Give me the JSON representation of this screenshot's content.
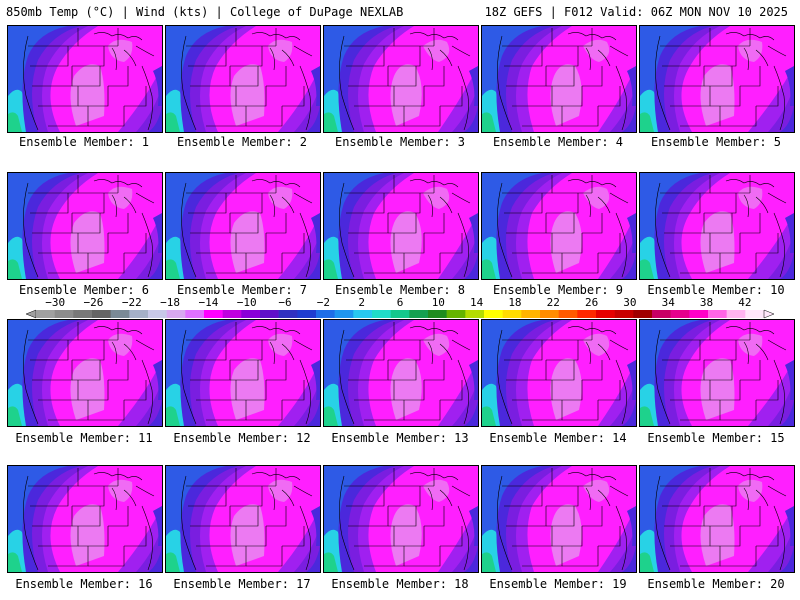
{
  "header": {
    "left": "850mb Temp (°C) | Wind (kts) | College of DuPage NEXLAB",
    "right": "18Z GEFS | F012 Valid: 06Z MON NOV 10 2025"
  },
  "member_label_prefix": "Ensemble Member: ",
  "members": [
    1,
    2,
    3,
    4,
    5,
    6,
    7,
    8,
    9,
    10,
    11,
    12,
    13,
    14,
    15,
    16,
    17,
    18,
    19,
    20
  ],
  "colorbar": {
    "tick_labels": [
      "-30",
      "-26",
      "-22",
      "-18",
      "-14",
      "-10",
      "-6",
      "-2",
      "2",
      "6",
      "10",
      "14",
      "18",
      "22",
      "26",
      "30",
      "34",
      "38",
      "42"
    ],
    "colors": [
      "#a0a0a0",
      "#8c8c8c",
      "#787878",
      "#646464",
      "#7a8a96",
      "#a5b0c8",
      "#c8c8e8",
      "#d8a8f0",
      "#e070ff",
      "#ff00ff",
      "#c000e0",
      "#8a00d8",
      "#6010c8",
      "#3030c0",
      "#1e3cd0",
      "#1e6ee8",
      "#1e96f0",
      "#28c8f0",
      "#20dcc8",
      "#14c88c",
      "#14a050",
      "#1e8c1e",
      "#64b400",
      "#b4dc00",
      "#ffff00",
      "#ffdc00",
      "#ffb400",
      "#ff8c00",
      "#ff5a00",
      "#ff2800",
      "#e60000",
      "#c80000",
      "#a00000",
      "#c80064",
      "#e6008c",
      "#ff00c8",
      "#ff64e6",
      "#ffb4f0",
      "#ffe6fa"
    ],
    "value_range": [
      -32,
      44
    ]
  },
  "map_colors": {
    "magenta": "#ff1fff",
    "light_magenta": "#e98bf0",
    "violet": "#a020f0",
    "purple": "#7a1ee0",
    "blue_violet": "#4b28dc",
    "blue": "#2e5ae6",
    "cyan_blue": "#1e96f0",
    "cyan": "#28d2e6",
    "teal": "#20c8aa",
    "ocean": "#1ed28c"
  }
}
